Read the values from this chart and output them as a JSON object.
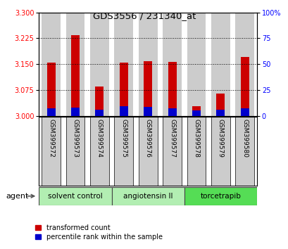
{
  "title": "GDS3556 / 231340_at",
  "samples": [
    "GSM399572",
    "GSM399573",
    "GSM399574",
    "GSM399575",
    "GSM399576",
    "GSM399577",
    "GSM399578",
    "GSM399579",
    "GSM399580"
  ],
  "red_values": [
    3.155,
    3.235,
    3.085,
    3.155,
    3.158,
    3.157,
    3.028,
    3.065,
    3.17
  ],
  "blue_pct": [
    7,
    8,
    6,
    9,
    8.5,
    7,
    5,
    6,
    7.5
  ],
  "y_min": 3.0,
  "y_max": 3.3,
  "y_ticks": [
    3.0,
    3.075,
    3.15,
    3.225,
    3.3
  ],
  "right_y_ticks": [
    0,
    25,
    50,
    75,
    100
  ],
  "right_y_labels": [
    "0",
    "25",
    "50",
    "75",
    "100%"
  ],
  "groups": [
    {
      "label": "solvent control",
      "start": 0,
      "end": 2
    },
    {
      "label": "angiotensin II",
      "start": 3,
      "end": 5
    },
    {
      "label": "torcetrapib",
      "start": 6,
      "end": 8
    }
  ],
  "group_colors": [
    "#b2eeb2",
    "#b2eeb2",
    "#55dd55"
  ],
  "agent_label": "agent",
  "legend_red": "transformed count",
  "legend_blue": "percentile rank within the sample",
  "bar_color_red": "#cc0000",
  "bar_color_blue": "#0000cc",
  "bar_bg_color": "#cccccc",
  "bar_width": 0.35,
  "bg_bar_width": 0.78
}
